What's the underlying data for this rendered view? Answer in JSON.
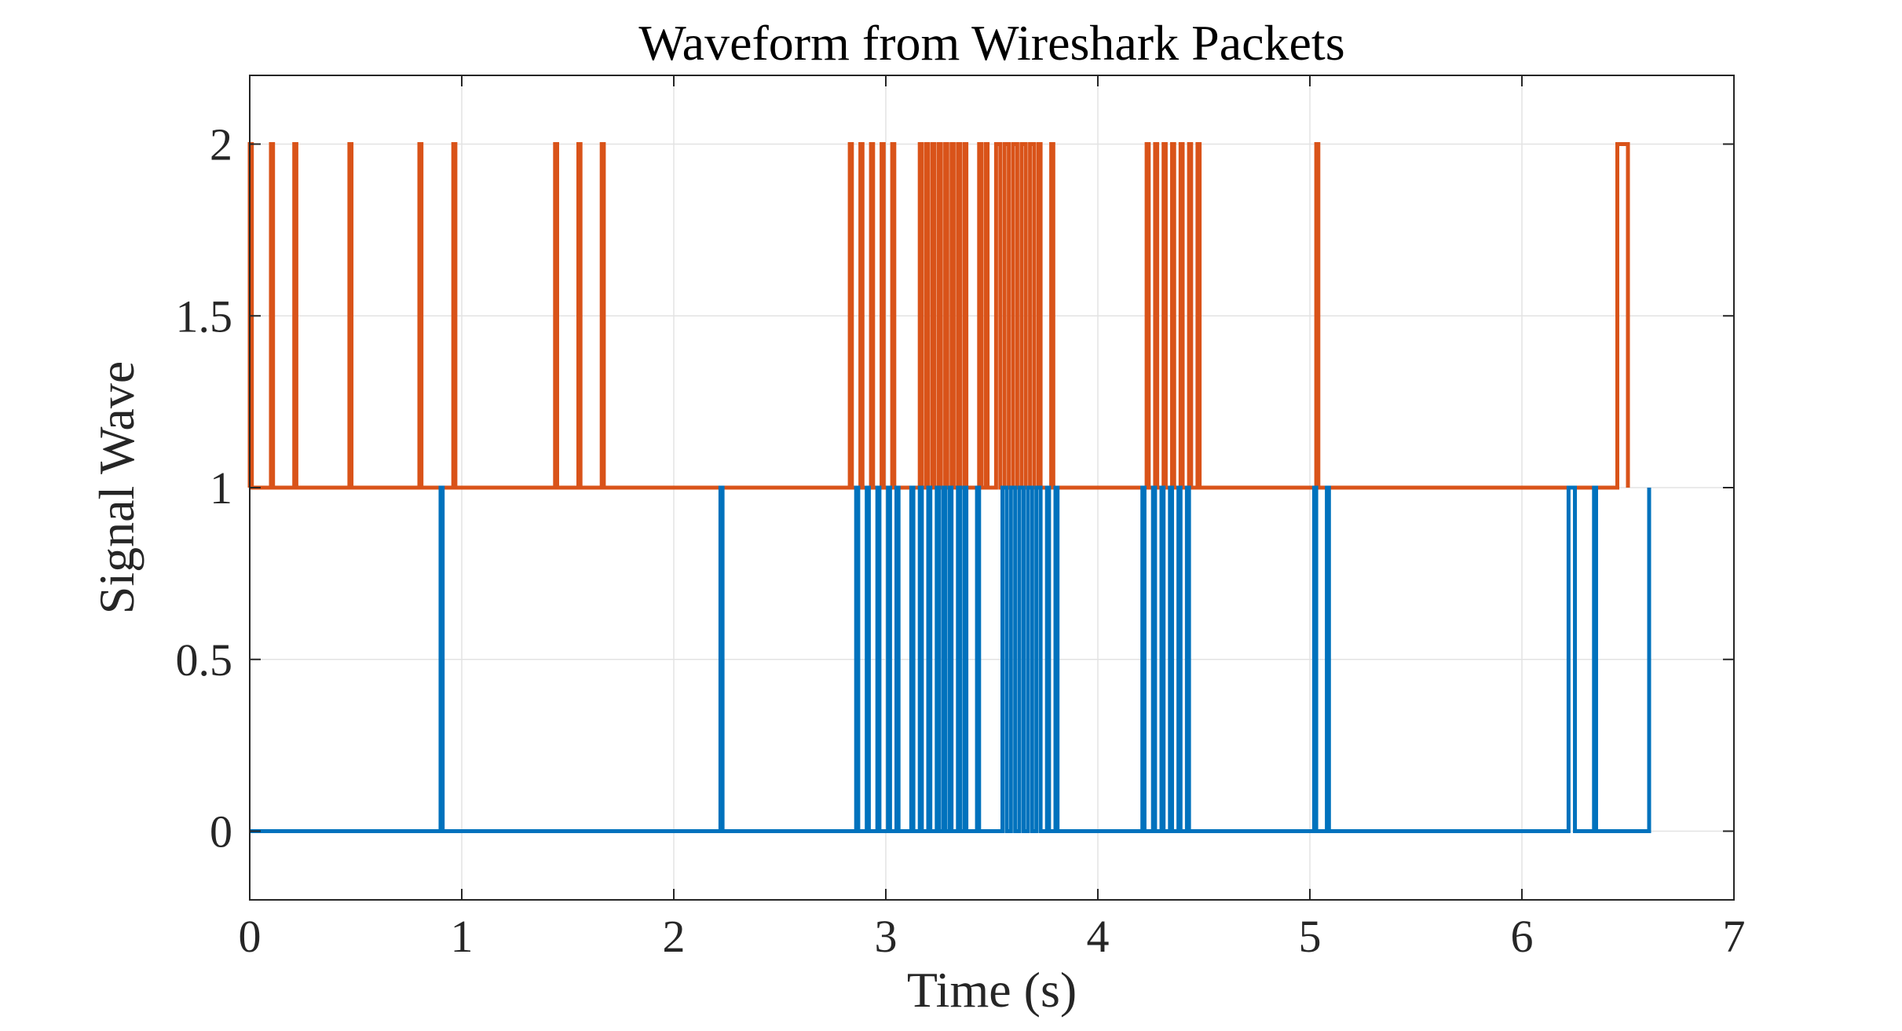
{
  "chart_data": {
    "type": "line",
    "title": "Waveform from Wireshark Packets",
    "xlabel": "Time (s)",
    "ylabel": "Signal Wave",
    "xlim": [
      0,
      7
    ],
    "ylim": [
      -0.2,
      2.2
    ],
    "xticks": [
      "0",
      "1",
      "2",
      "3",
      "4",
      "5",
      "6",
      "7"
    ],
    "yticks": [
      "0",
      "0.5",
      "1",
      "1.5",
      "2"
    ],
    "grid": true,
    "line_style": "step",
    "series": [
      {
        "color": "#D95319",
        "baseline": 1,
        "pulse_level": 2,
        "x_start": 0,
        "x_end": 6.5,
        "pulses": [
          [
            0.0,
            0.01
          ],
          [
            0.1,
            0.11
          ],
          [
            0.21,
            0.22
          ],
          [
            0.47,
            0.48
          ],
          [
            0.8,
            0.81
          ],
          [
            0.96,
            0.97
          ],
          [
            1.44,
            1.45
          ],
          [
            1.55,
            1.56
          ],
          [
            1.66,
            1.67
          ],
          [
            2.83,
            2.84
          ],
          [
            2.88,
            2.89
          ],
          [
            2.93,
            2.94
          ],
          [
            2.98,
            2.99
          ],
          [
            3.03,
            3.04
          ],
          [
            3.16,
            3.17
          ],
          [
            3.19,
            3.2
          ],
          [
            3.22,
            3.23
          ],
          [
            3.25,
            3.26
          ],
          [
            3.28,
            3.29
          ],
          [
            3.31,
            3.32
          ],
          [
            3.34,
            3.35
          ],
          [
            3.37,
            3.38
          ],
          [
            3.44,
            3.45
          ],
          [
            3.47,
            3.48
          ],
          [
            3.52,
            3.54
          ],
          [
            3.56,
            3.58
          ],
          [
            3.6,
            3.62
          ],
          [
            3.64,
            3.66
          ],
          [
            3.68,
            3.7
          ],
          [
            3.72,
            3.73
          ],
          [
            3.78,
            3.79
          ],
          [
            4.23,
            4.24
          ],
          [
            4.27,
            4.28
          ],
          [
            4.31,
            4.32
          ],
          [
            4.35,
            4.36
          ],
          [
            4.39,
            4.4
          ],
          [
            4.43,
            4.44
          ],
          [
            4.47,
            4.48
          ],
          [
            5.03,
            5.04
          ],
          [
            6.45,
            6.5
          ]
        ]
      },
      {
        "color": "#0072BD",
        "baseline": 0,
        "pulse_level": 1,
        "x_start": 0,
        "x_end": 6.6,
        "pulses": [
          [
            0.9,
            0.91
          ],
          [
            2.22,
            2.23
          ],
          [
            2.86,
            2.87
          ],
          [
            2.91,
            2.92
          ],
          [
            2.96,
            2.97
          ],
          [
            3.01,
            3.02
          ],
          [
            3.05,
            3.06
          ],
          [
            3.12,
            3.13
          ],
          [
            3.16,
            3.17
          ],
          [
            3.2,
            3.21
          ],
          [
            3.24,
            3.25
          ],
          [
            3.27,
            3.28
          ],
          [
            3.3,
            3.31
          ],
          [
            3.34,
            3.35
          ],
          [
            3.37,
            3.38
          ],
          [
            3.43,
            3.44
          ],
          [
            3.55,
            3.57
          ],
          [
            3.59,
            3.61
          ],
          [
            3.63,
            3.65
          ],
          [
            3.67,
            3.69
          ],
          [
            3.71,
            3.73
          ],
          [
            3.76,
            3.77
          ],
          [
            3.8,
            3.81
          ],
          [
            4.21,
            4.22
          ],
          [
            4.26,
            4.27
          ],
          [
            4.3,
            4.31
          ],
          [
            4.34,
            4.35
          ],
          [
            4.38,
            4.39
          ],
          [
            4.42,
            4.43
          ],
          [
            5.02,
            5.03
          ],
          [
            5.08,
            5.09
          ],
          [
            6.22,
            6.25
          ],
          [
            6.34,
            6.35
          ],
          [
            6.6,
            6.6
          ]
        ]
      }
    ]
  }
}
